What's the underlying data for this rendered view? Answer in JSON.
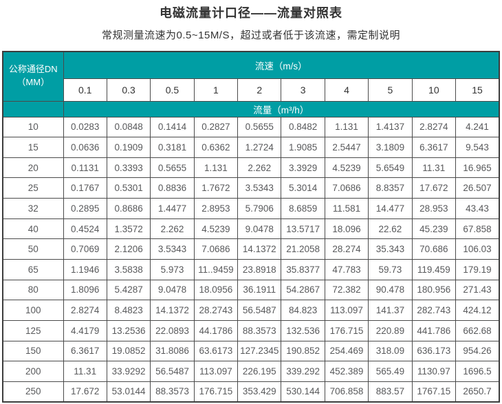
{
  "page": {
    "title": "电磁流量计口径——流量对照表",
    "subtitle": "常规测量流速为0.5~15M/S，超过或者低于该流速，需定制说明"
  },
  "table": {
    "corner_line1": "公称通径DN",
    "corner_line2": "（MM）",
    "velocity_label": "流速（m/s）",
    "flow_label": "流量（m³/h）"
  },
  "colors": {
    "header_teal": "#009EA4",
    "header_text": "#ffffff",
    "body_text": "#58595b",
    "border": "#4a4a4a",
    "title_text": "#333333"
  },
  "chart_data": {
    "type": "table",
    "title": "电磁流量计口径——流量对照表",
    "subtitle": "常规测量流速为0.5~15M/S，超过或者低于该流速，需定制说明",
    "corner_header": "公称通径DN（MM）",
    "column_group_label": "流速（m/s）",
    "value_group_label": "流量（m³/h）",
    "velocity_columns": [
      "0.1",
      "0.3",
      "0.5",
      "1",
      "2",
      "3",
      "4",
      "5",
      "10",
      "15"
    ],
    "rows": [
      {
        "dn": "10",
        "values": [
          "0.0283",
          "0.0848",
          "0.1414",
          "0.2827",
          "0.5655",
          "0.8482",
          "1.131",
          "1.4137",
          "2.8274",
          "4.241"
        ]
      },
      {
        "dn": "15",
        "values": [
          "0.0636",
          "0.1909",
          "0.3181",
          "0.6362",
          "1.2724",
          "1.9085",
          "2.5447",
          "3.1809",
          "6.3617",
          "9.543"
        ]
      },
      {
        "dn": "20",
        "values": [
          "0.1131",
          "0.3393",
          "0.5655",
          "1.131",
          "2.262",
          "3.3929",
          "4.5239",
          "5.6549",
          "11.31",
          "16.965"
        ]
      },
      {
        "dn": "25",
        "values": [
          "0.1767",
          "0.5301",
          "0.8836",
          "1.7672",
          "3.5343",
          "5.3014",
          "7.0686",
          "8.8357",
          "17.672",
          "26.507"
        ]
      },
      {
        "dn": "32",
        "values": [
          "0.2895",
          "0.8686",
          "1.4477",
          "2.8953",
          "5.7906",
          "8.6859",
          "11.581",
          "14.477",
          "28.953",
          "43.43"
        ]
      },
      {
        "dn": "40",
        "values": [
          "0.4524",
          "1.3572",
          "2.262",
          "4.5239",
          "9.0478",
          "13.5717",
          "18.096",
          "22.62",
          "45.239",
          "67.858"
        ]
      },
      {
        "dn": "50",
        "values": [
          "0.7069",
          "2.1206",
          "3.5343",
          "7.0686",
          "14.1372",
          "21.2058",
          "28.274",
          "35.343",
          "70.686",
          "106.03"
        ]
      },
      {
        "dn": "65",
        "values": [
          "1.1946",
          "3.5838",
          "5.973",
          "11..9459",
          "23.8918",
          "35.8377",
          "47.783",
          "59.73",
          "119.459",
          "179.19"
        ]
      },
      {
        "dn": "80",
        "values": [
          "1.8096",
          "5.4287",
          "9.0478",
          "18.0956",
          "36.1911",
          "54.2867",
          "72.382",
          "90.478",
          "180.956",
          "271.43"
        ]
      },
      {
        "dn": "100",
        "values": [
          "2.8274",
          "8.4823",
          "14.1372",
          "28.2743",
          "56.5487",
          "84.823",
          "113.097",
          "141.37",
          "282.743",
          "424.12"
        ]
      },
      {
        "dn": "125",
        "values": [
          "4.4179",
          "13.2536",
          "22.0893",
          "44.1786",
          "88.3573",
          "132.536",
          "176.715",
          "220.89",
          "441.786",
          "662.68"
        ]
      },
      {
        "dn": "150",
        "values": [
          "6.3617",
          "19.0852",
          "31.8086",
          "63.6173",
          "127.2345",
          "190.852",
          "254.469",
          "318.09",
          "636.173",
          "954.26"
        ]
      },
      {
        "dn": "200",
        "values": [
          "11.31",
          "33.9292",
          "56.5487",
          "113.097",
          "226.195",
          "339.292",
          "452.389",
          "565.49",
          "1130.97",
          "1696.5"
        ]
      },
      {
        "dn": "250",
        "values": [
          "17.672",
          "53.0144",
          "88.3573",
          "176.715",
          "353.429",
          "530.144",
          "706.858",
          "883.57",
          "1767.15",
          "2650.7"
        ]
      }
    ]
  }
}
